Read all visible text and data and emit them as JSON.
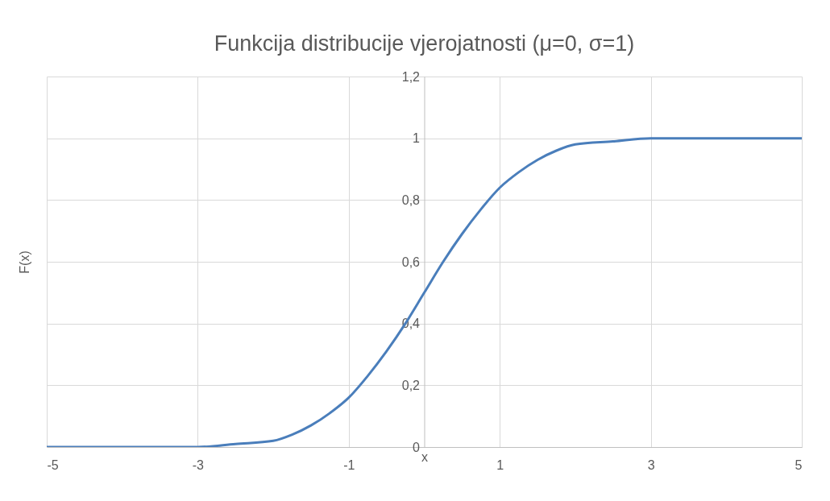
{
  "chart_data": {
    "type": "line",
    "title": "Funkcija distribucije vjerojatnosti (μ=0, σ=1)",
    "xlabel": "x",
    "ylabel": "F(x)",
    "x": [
      -5,
      -4.5,
      -4,
      -3.5,
      -3,
      -2.5,
      -2,
      -1.75,
      -1.5,
      -1.25,
      -1,
      -0.75,
      -0.5,
      -0.25,
      0,
      0.25,
      0.5,
      0.75,
      1,
      1.25,
      1.5,
      1.75,
      2,
      2.5,
      3,
      3.5,
      4,
      4.5,
      5
    ],
    "series": [
      {
        "color": "#4a7ebb",
        "values": [
          0,
          0,
          0,
          0,
          0,
          0.01,
          0.02,
          0.04,
          0.07,
          0.11,
          0.16,
          0.23,
          0.31,
          0.4,
          0.5,
          0.6,
          0.69,
          0.77,
          0.84,
          0.89,
          0.93,
          0.96,
          0.98,
          0.99,
          1,
          1,
          1,
          1,
          1
        ]
      }
    ],
    "xlim": [
      -5,
      5
    ],
    "xticks": [
      -5,
      -3,
      -1,
      1,
      3,
      5
    ],
    "ylim": [
      0,
      1.2
    ],
    "yticks": [
      0,
      {
        "value": 0.2,
        "label": "0,2"
      },
      {
        "value": 0.4,
        "label": "0,4"
      },
      {
        "value": 0.6,
        "label": "0,6"
      },
      {
        "value": 0.8,
        "label": "0,8"
      },
      1,
      {
        "value": 1.2,
        "label": "1,2"
      }
    ],
    "grid": true,
    "marker": "none",
    "line_style": "solid"
  }
}
